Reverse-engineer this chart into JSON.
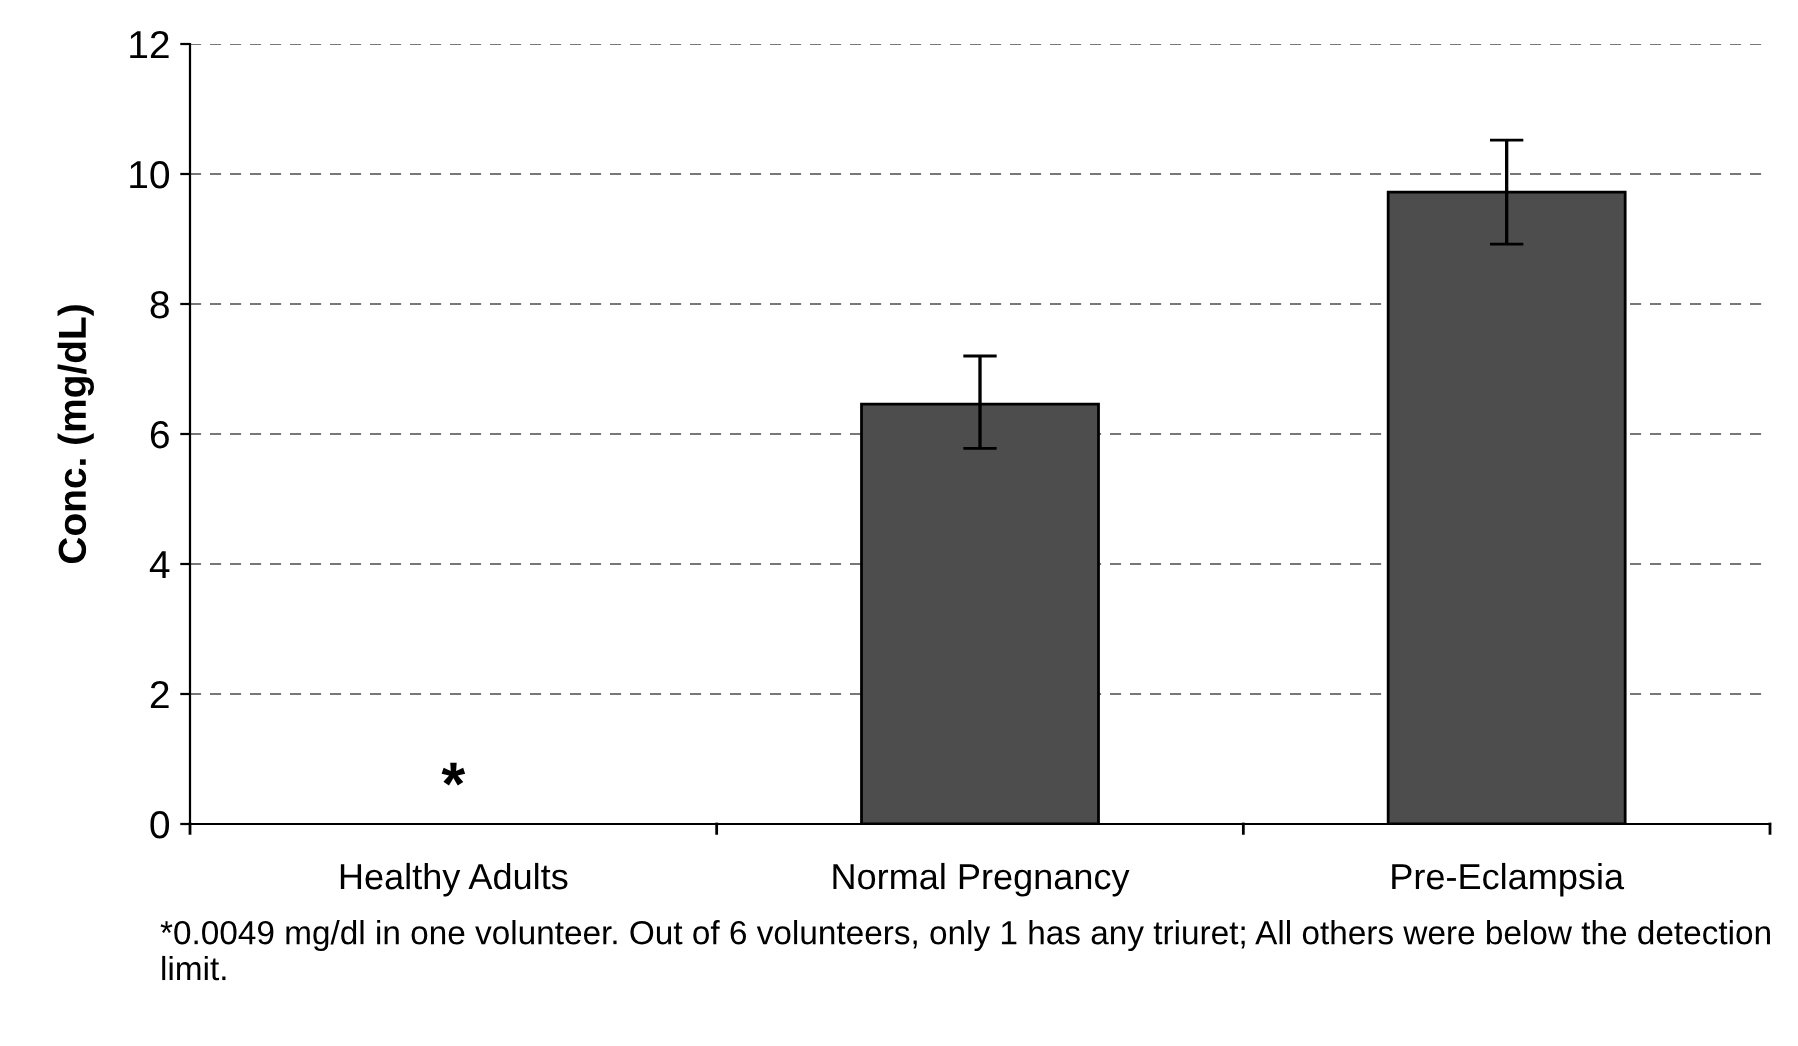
{
  "chart_data": {
    "type": "bar",
    "ylabel": "Conc. (mg/dL)",
    "categories": [
      "Healthy Adults",
      "Normal Pregnancy",
      "Pre-Eclampsia"
    ],
    "values": [
      null,
      6.46,
      9.72
    ],
    "errors": [
      null,
      [
        5.78,
        7.2
      ],
      [
        8.92,
        10.52
      ]
    ],
    "color": "#4d4d4d",
    "ylim": [
      0,
      12
    ],
    "yticks": [
      0,
      2,
      4,
      6,
      8,
      10,
      12
    ],
    "grid": "y",
    "annotations": [
      "*",
      "*0.0049 mg/dl in one volunteer. Out of 6 volunteers, only 1 has any triuret; All others were below the detection limit."
    ]
  }
}
